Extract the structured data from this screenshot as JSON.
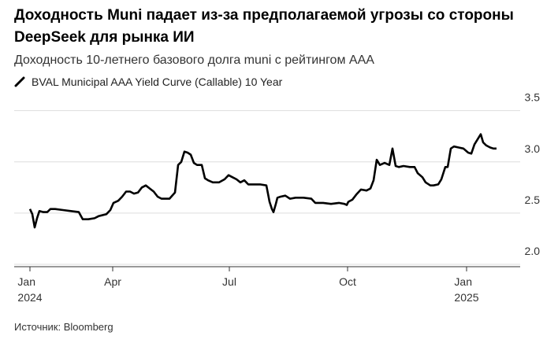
{
  "chart_data": {
    "type": "line",
    "title": "Доходность Muni падает из-за предполагаемой угрозы со стороны DeepSeek для рынка ИИ",
    "subtitle": "Доходность 10-летнего базового долга muni с рейтингом AAA",
    "source": "Источник: Bloomberg",
    "x": [
      0,
      0.06,
      0.12,
      0.18,
      0.24,
      0.34,
      0.44,
      0.52,
      0.64,
      0.84,
      1.04,
      1.24,
      1.34,
      1.48,
      1.64,
      1.74,
      1.94,
      2.04,
      2.12,
      2.24,
      2.34,
      2.44,
      2.54,
      2.64,
      2.74,
      2.84,
      2.94,
      3.04,
      3.14,
      3.24,
      3.34,
      3.54,
      3.68,
      3.76,
      3.84,
      3.92,
      4.0,
      4.08,
      4.16,
      4.24,
      4.36,
      4.44,
      4.52,
      4.64,
      4.8,
      4.94,
      5.04,
      5.14,
      5.24,
      5.34,
      5.44,
      5.54,
      5.64,
      5.84,
      6.0,
      6.08,
      6.14,
      6.18,
      6.24,
      6.28,
      6.36,
      6.48,
      6.6,
      6.74,
      6.94,
      7.14,
      7.24,
      7.44,
      7.64,
      7.84,
      7.98,
      8.04,
      8.08,
      8.18,
      8.28,
      8.4,
      8.54,
      8.64,
      8.72,
      8.8,
      8.88,
      9.0,
      9.12,
      9.2,
      9.28,
      9.36,
      9.48,
      9.64,
      9.76,
      9.84,
      9.96,
      10.04,
      10.16,
      10.24,
      10.36,
      10.44,
      10.54,
      10.6,
      10.68,
      10.76,
      10.88,
      11.0,
      11.12,
      11.2,
      11.28,
      11.36,
      11.44,
      11.5,
      11.58,
      11.68,
      11.76,
      11.84
    ],
    "series": [
      {
        "name": "BVAL Municipal AAA Yield Curve (Callable) 10 Year",
        "color": "#000000",
        "values": [
          2.54,
          2.49,
          2.36,
          2.45,
          2.52,
          2.51,
          2.51,
          2.54,
          2.54,
          2.53,
          2.52,
          2.51,
          2.44,
          2.44,
          2.45,
          2.47,
          2.49,
          2.53,
          2.6,
          2.62,
          2.66,
          2.71,
          2.71,
          2.69,
          2.7,
          2.75,
          2.77,
          2.74,
          2.71,
          2.66,
          2.64,
          2.64,
          2.7,
          2.97,
          3.0,
          3.1,
          3.09,
          3.07,
          2.99,
          2.97,
          2.97,
          2.84,
          2.82,
          2.8,
          2.8,
          2.83,
          2.87,
          2.85,
          2.83,
          2.8,
          2.82,
          2.78,
          2.78,
          2.78,
          2.77,
          2.61,
          2.54,
          2.51,
          2.59,
          2.65,
          2.66,
          2.67,
          2.64,
          2.65,
          2.65,
          2.64,
          2.6,
          2.6,
          2.59,
          2.6,
          2.59,
          2.58,
          2.61,
          2.63,
          2.68,
          2.73,
          2.72,
          2.74,
          2.82,
          3.02,
          2.97,
          2.99,
          2.97,
          3.13,
          2.96,
          2.95,
          2.96,
          2.95,
          2.95,
          2.89,
          2.85,
          2.8,
          2.77,
          2.77,
          2.78,
          2.83,
          2.95,
          2.95,
          3.13,
          3.15,
          3.14,
          3.13,
          3.09,
          3.08,
          3.17,
          3.22,
          3.27,
          3.19,
          3.16,
          3.14,
          3.13,
          3.13
        ]
      }
    ],
    "xlim": [
      -0.4,
      12.44
    ],
    "xticks": [
      {
        "value": 0,
        "label": "Jan\n2024"
      },
      {
        "value": 2.1,
        "label": "Apr"
      },
      {
        "value": 5.06,
        "label": "Jul"
      },
      {
        "value": 8.06,
        "label": "Oct"
      },
      {
        "value": 11.08,
        "label": "Jan\n2025"
      }
    ],
    "ylim": [
      2.0,
      3.62
    ],
    "yticks": [
      {
        "value": 2,
        "label": "2.0"
      },
      2.5,
      {
        "value": 3,
        "label": "3.0"
      },
      3.5
    ],
    "grid": true
  }
}
